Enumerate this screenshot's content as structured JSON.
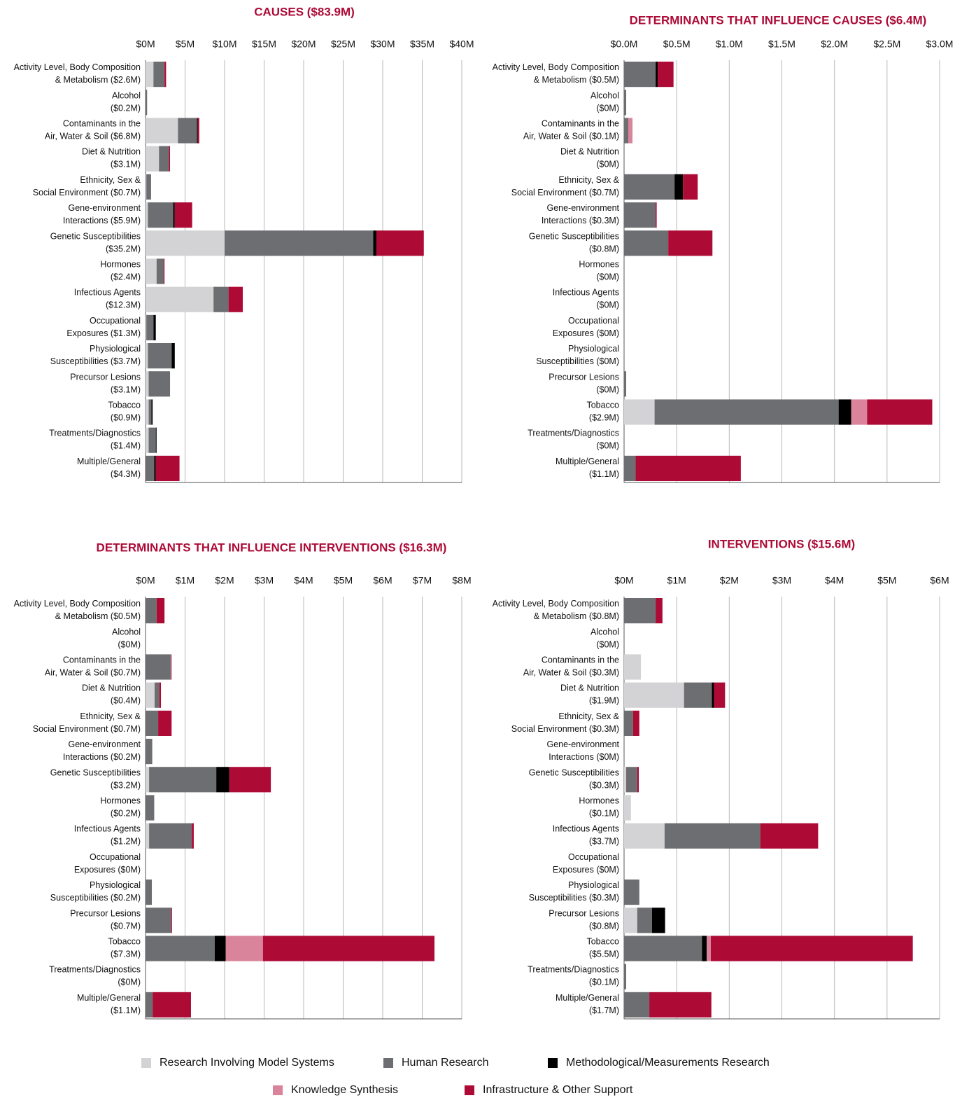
{
  "legend": [
    {
      "name": "Research Involving Model Systems",
      "color": "#d3d3d5"
    },
    {
      "name": "Human Research",
      "color": "#6d6e71"
    },
    {
      "name": "Methodological/Measurements Research",
      "color": "#000000"
    },
    {
      "name": "Knowledge Synthesis",
      "color": "#d9849a"
    },
    {
      "name": "Infrastructure & Other Support",
      "color": "#ad0a36"
    }
  ],
  "chart_data": [
    {
      "type": "bar",
      "orientation": "horizontal",
      "stacked": true,
      "grid": true,
      "title": "CAUSES ($83.9M)",
      "categories": [
        [
          "Activity Level, Body Composition",
          "& Metabolism ($2.6M)"
        ],
        [
          "Alcohol",
          "($0.2M)"
        ],
        [
          "Contaminants in the",
          "Air, Water & Soil ($6.8M)"
        ],
        [
          "Diet & Nutrition",
          "($3.1M)"
        ],
        [
          "Ethnicity, Sex &",
          "Social Environment ($0.7M)"
        ],
        [
          "Gene-environment",
          "Interactions ($5.9M)"
        ],
        [
          "Genetic Susceptibilities",
          "($35.2M)"
        ],
        [
          "Hormones",
          "($2.4M)"
        ],
        [
          "Infectious Agents",
          "($12.3M)"
        ],
        [
          "Occupational",
          "Exposures ($1.3M)"
        ],
        [
          "Physiological",
          "Susceptibilities ($3.7M)"
        ],
        [
          "Precursor Lesions",
          "($3.1M)"
        ],
        [
          "Tobacco",
          "($0.9M)"
        ],
        [
          "Treatments/Diagnostics",
          "($1.4M)"
        ],
        [
          "Multiple/General",
          "($4.3M)"
        ]
      ],
      "series": [
        {
          "values": [
            1.0,
            0,
            4.1,
            1.7,
            0.1,
            0.3,
            10.0,
            1.4,
            8.6,
            0.1,
            0.3,
            0.4,
            0.4,
            0.4,
            0
          ]
        },
        {
          "values": [
            1.4,
            0.2,
            2.4,
            1.25,
            0.6,
            3.2,
            18.8,
            0.9,
            1.9,
            0.9,
            3.0,
            2.7,
            0.35,
            0.9,
            1.1
          ]
        },
        {
          "values": [
            0,
            0,
            0.1,
            0,
            0,
            0.2,
            0.4,
            0,
            0,
            0.3,
            0.4,
            0,
            0.15,
            0.1,
            0.2
          ]
        },
        {
          "values": [
            0,
            0,
            0,
            0,
            0,
            0,
            0,
            0,
            0,
            0,
            0,
            0,
            0,
            0,
            0
          ]
        },
        {
          "values": [
            0.2,
            0,
            0.2,
            0.15,
            0,
            2.2,
            6.0,
            0.1,
            1.8,
            0,
            0,
            0,
            0,
            0,
            3.0
          ]
        }
      ],
      "xlim": [
        0,
        40
      ],
      "xticks": [
        {
          "value": 0,
          "label": "$0M"
        },
        {
          "value": 5,
          "label": "$5M"
        },
        {
          "value": 10,
          "label": "$10M"
        },
        {
          "value": 15,
          "label": "$15M"
        },
        {
          "value": 20,
          "label": "$20M"
        },
        {
          "value": 25,
          "label": "$25M"
        },
        {
          "value": 30,
          "label": "$30M"
        },
        {
          "value": 35,
          "label": "$35M"
        },
        {
          "value": 40,
          "label": "$40M"
        }
      ]
    },
    {
      "type": "bar",
      "orientation": "horizontal",
      "stacked": true,
      "grid": true,
      "title": "DETERMINANTS THAT INFLUENCE CAUSES ($6.4M)",
      "categories": [
        [
          "Activity Level, Body Composition",
          "& Metabolism ($0.5M)"
        ],
        [
          "Alcohol",
          "($0M)"
        ],
        [
          "Contaminants in the",
          "Air, Water & Soil ($0.1M)"
        ],
        [
          "Diet & Nutrition",
          "($0M)"
        ],
        [
          "Ethnicity, Sex &",
          "Social Environment ($0.7M)"
        ],
        [
          "Gene-environment",
          "Interactions ($0.3M)"
        ],
        [
          "Genetic Susceptibilities",
          "($0.8M)"
        ],
        [
          "Hormones",
          "($0M)"
        ],
        [
          "Infectious Agents",
          "($0M)"
        ],
        [
          "Occupational",
          "Exposures ($0M)"
        ],
        [
          "Physiological",
          "Susceptibilities ($0M)"
        ],
        [
          "Precursor Lesions",
          "($0M)"
        ],
        [
          "Tobacco",
          "($2.9M)"
        ],
        [
          "Treatments/Diagnostics",
          "($0M)"
        ],
        [
          "Multiple/General",
          "($1.1M)"
        ]
      ],
      "series": [
        {
          "values": [
            0,
            0,
            0,
            0,
            0,
            0,
            0,
            0,
            0,
            0,
            0,
            0,
            0.29,
            0,
            0
          ]
        },
        {
          "values": [
            0.3,
            0.02,
            0.04,
            0,
            0.48,
            0.3,
            0.42,
            0,
            0,
            0,
            0,
            0.02,
            1.75,
            0,
            0.11
          ]
        },
        {
          "values": [
            0.02,
            0,
            0,
            0,
            0.08,
            0,
            0,
            0,
            0,
            0,
            0,
            0,
            0.12,
            0,
            0
          ]
        },
        {
          "values": [
            0,
            0,
            0.04,
            0,
            0,
            0,
            0,
            0,
            0,
            0,
            0,
            0,
            0.15,
            0,
            0
          ]
        },
        {
          "values": [
            0.15,
            0,
            0,
            0,
            0.14,
            0.01,
            0.42,
            0,
            0,
            0,
            0,
            0,
            0.62,
            0,
            1.0
          ]
        }
      ],
      "xlim": [
        0,
        3
      ],
      "xticks": [
        {
          "value": 0,
          "label": "$0.0M"
        },
        {
          "value": 0.5,
          "label": "$0.5M"
        },
        {
          "value": 1,
          "label": "$1.0M"
        },
        {
          "value": 1.5,
          "label": "$1.5M"
        },
        {
          "value": 2,
          "label": "$2.0M"
        },
        {
          "value": 2.5,
          "label": "$2.5M"
        },
        {
          "value": 3,
          "label": "$3.0M"
        }
      ]
    },
    {
      "type": "bar",
      "orientation": "horizontal",
      "stacked": true,
      "grid": true,
      "title": "DETERMINANTS THAT INFLUENCE INTERVENTIONS ($16.3M)",
      "categories": [
        [
          "Activity Level, Body Composition",
          "& Metabolism ($0.5M)"
        ],
        [
          "Alcohol",
          "($0M)"
        ],
        [
          "Contaminants in the",
          "Air, Water & Soil ($0.7M)"
        ],
        [
          "Diet & Nutrition",
          "($0.4M)"
        ],
        [
          "Ethnicity, Sex &",
          "Social Environment ($0.7M)"
        ],
        [
          "Gene-environment",
          "Interactions ($0.2M)"
        ],
        [
          "Genetic Susceptibilities",
          "($3.2M)"
        ],
        [
          "Hormones",
          "($0.2M)"
        ],
        [
          "Infectious Agents",
          "($1.2M)"
        ],
        [
          "Occupational",
          "Exposures ($0M)"
        ],
        [
          "Physiological",
          "Susceptibilities ($0.2M)"
        ],
        [
          "Precursor Lesions",
          "($0.7M)"
        ],
        [
          "Tobacco",
          "($7.3M)"
        ],
        [
          "Treatments/Diagnostics",
          "($0M)"
        ],
        [
          "Multiple/General",
          "($1.1M)"
        ]
      ],
      "series": [
        {
          "values": [
            0,
            0,
            0,
            0.23,
            0,
            0,
            0.09,
            0,
            0.09,
            0,
            0,
            0,
            0,
            0,
            0
          ]
        },
        {
          "values": [
            0.28,
            0,
            0.64,
            0.12,
            0.32,
            0.17,
            1.7,
            0.22,
            1.08,
            0,
            0.16,
            0.65,
            1.75,
            0,
            0.18
          ]
        },
        {
          "values": [
            0,
            0,
            0,
            0,
            0,
            0,
            0.33,
            0,
            0,
            0,
            0,
            0,
            0.28,
            0,
            0
          ]
        },
        {
          "values": [
            0,
            0,
            0.03,
            0,
            0,
            0,
            0,
            0,
            0,
            0,
            0,
            0,
            0.94,
            0,
            0
          ]
        },
        {
          "values": [
            0.2,
            0,
            0,
            0.04,
            0.34,
            0,
            1.05,
            0,
            0.05,
            0,
            0,
            0.02,
            4.34,
            0,
            0.97
          ]
        }
      ],
      "xlim": [
        0,
        8
      ],
      "xticks": [
        {
          "value": 0,
          "label": "$0M"
        },
        {
          "value": 1,
          "label": "$1M"
        },
        {
          "value": 2,
          "label": "$2M"
        },
        {
          "value": 3,
          "label": "$3M"
        },
        {
          "value": 4,
          "label": "$4M"
        },
        {
          "value": 5,
          "label": "$5M"
        },
        {
          "value": 6,
          "label": "$6M"
        },
        {
          "value": 7,
          "label": "$7M"
        },
        {
          "value": 8,
          "label": "$8M"
        }
      ]
    },
    {
      "type": "bar",
      "orientation": "horizontal",
      "stacked": true,
      "grid": true,
      "title": "INTERVENTIONS ($15.6M)",
      "categories": [
        [
          "Activity Level, Body Composition",
          "& Metabolism ($0.8M)"
        ],
        [
          "Alcohol",
          "($0M)"
        ],
        [
          "Contaminants in the",
          "Air, Water & Soil ($0.3M)"
        ],
        [
          "Diet & Nutrition",
          "($1.9M)"
        ],
        [
          "Ethnicity, Sex &",
          "Social Environment ($0.3M)"
        ],
        [
          "Gene-environment",
          "Interactions ($0M)"
        ],
        [
          "Genetic Susceptibilities",
          "($0.3M)"
        ],
        [
          "Hormones",
          "($0.1M)"
        ],
        [
          "Infectious Agents",
          "($3.7M)"
        ],
        [
          "Occupational",
          "Exposures ($0M)"
        ],
        [
          "Physiological",
          "Susceptibilities ($0.3M)"
        ],
        [
          "Precursor Lesions",
          "($0.8M)"
        ],
        [
          "Tobacco",
          "($5.5M)"
        ],
        [
          "Treatments/Diagnostics",
          "($0.1M)"
        ],
        [
          "Multiple/General",
          "($1.7M)"
        ]
      ],
      "series": [
        {
          "values": [
            0,
            0,
            0.32,
            1.14,
            0,
            0,
            0.04,
            0.13,
            0.77,
            0,
            0,
            0.25,
            0,
            0,
            0
          ]
        },
        {
          "values": [
            0.6,
            0,
            0,
            0.53,
            0.17,
            0,
            0.21,
            0,
            1.82,
            0,
            0.29,
            0.28,
            1.48,
            0.04,
            0.48
          ]
        },
        {
          "values": [
            0,
            0,
            0,
            0.04,
            0,
            0,
            0,
            0,
            0,
            0,
            0,
            0.25,
            0.09,
            0,
            0
          ]
        },
        {
          "values": [
            0,
            0,
            0,
            0,
            0,
            0,
            0,
            0,
            0,
            0,
            0,
            0,
            0.08,
            0,
            0
          ]
        },
        {
          "values": [
            0.13,
            0,
            0,
            0.21,
            0.12,
            0,
            0.03,
            0,
            1.1,
            0,
            0,
            0,
            3.84,
            0,
            1.18
          ]
        }
      ],
      "xlim": [
        0,
        6
      ],
      "xticks": [
        {
          "value": 0,
          "label": "$0M"
        },
        {
          "value": 1,
          "label": "$1M"
        },
        {
          "value": 2,
          "label": "$2M"
        },
        {
          "value": 3,
          "label": "$3M"
        },
        {
          "value": 4,
          "label": "$4M"
        },
        {
          "value": 5,
          "label": "$5M"
        },
        {
          "value": 6,
          "label": "$6M"
        }
      ]
    }
  ]
}
